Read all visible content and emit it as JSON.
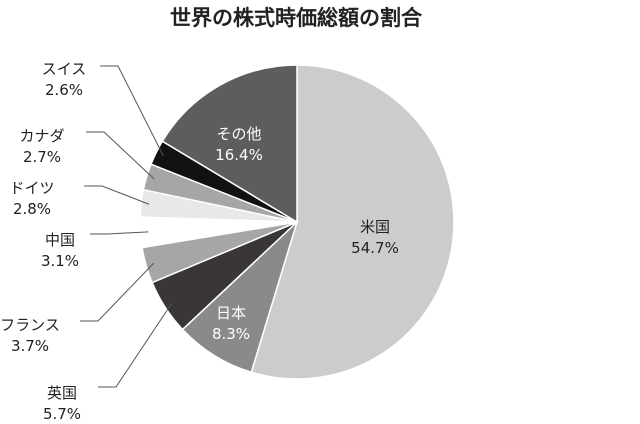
{
  "chart_data": {
    "type": "pie",
    "title": "世界の株式時価総額の割合",
    "slices": [
      {
        "label": "米国",
        "value": 54.7,
        "value_text": "54.7%",
        "color": "#cccccc"
      },
      {
        "label": "日本",
        "value": 8.3,
        "value_text": "8.3%",
        "color": "#8a8a8a"
      },
      {
        "label": "英国",
        "value": 5.7,
        "value_text": "5.7%",
        "color": "#3a3636"
      },
      {
        "label": "フランス",
        "value": 3.7,
        "value_text": "3.7%",
        "color": "#a6a6a6"
      },
      {
        "label": "中国",
        "value": 3.1,
        "value_text": "3.1%",
        "color": "#ffffff"
      },
      {
        "label": "ドイツ",
        "value": 2.8,
        "value_text": "2.8%",
        "color": "#e8e8e8"
      },
      {
        "label": "カナダ",
        "value": 2.7,
        "value_text": "2.7%",
        "color": "#a6a6a6"
      },
      {
        "label": "スイス",
        "value": 2.6,
        "value_text": "2.6%",
        "color": "#111111"
      },
      {
        "label": "その他",
        "value": 16.4,
        "value_text": "16.4%",
        "color": "#5e5c5c"
      }
    ]
  }
}
